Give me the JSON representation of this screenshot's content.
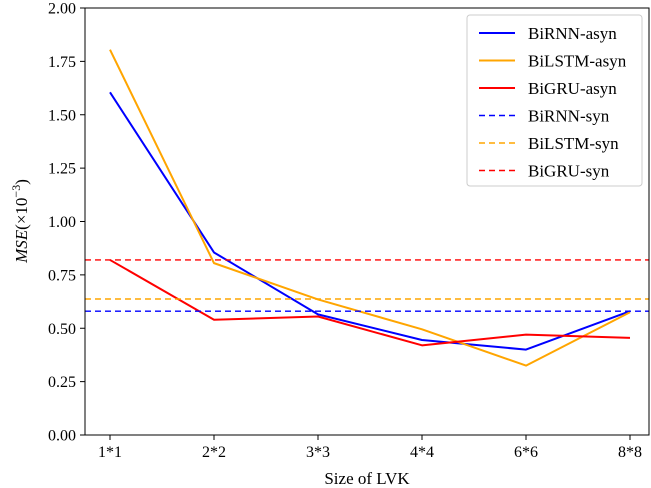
{
  "chart_data": {
    "type": "line",
    "title": "",
    "xlabel": "Size of LVK",
    "ylabel_main": "MSE",
    "ylabel_paren_open": "(×10",
    "ylabel_exp": "−3",
    "ylabel_paren_close": ")",
    "categories": [
      "1*1",
      "2*2",
      "3*3",
      "4*4",
      "6*6",
      "8*8"
    ],
    "ylim": [
      0,
      2.0
    ],
    "yticks": [
      "0.00",
      "0.25",
      "0.50",
      "0.75",
      "1.00",
      "1.25",
      "1.50",
      "1.75",
      "2.00"
    ],
    "grid": false,
    "legend_position": "top-right",
    "series": [
      {
        "name": "BiRNN-asyn",
        "color": "#0000ff",
        "style": "solid",
        "values": [
          1.605,
          0.855,
          0.565,
          0.445,
          0.4,
          0.58
        ]
      },
      {
        "name": "BiLSTM-asyn",
        "color": "#ffa500",
        "style": "solid",
        "values": [
          1.805,
          0.805,
          0.635,
          0.495,
          0.325,
          0.575
        ]
      },
      {
        "name": "BiGRU-asyn",
        "color": "#ff0000",
        "style": "solid",
        "values": [
          0.82,
          0.54,
          0.555,
          0.42,
          0.47,
          0.455
        ]
      },
      {
        "name": "BiRNN-syn",
        "color": "#0000ff",
        "style": "dashed",
        "values": [
          0.58,
          0.58,
          0.58,
          0.58,
          0.58,
          0.58
        ]
      },
      {
        "name": "BiLSTM-syn",
        "color": "#ffa500",
        "style": "dashed",
        "values": [
          0.637,
          0.637,
          0.637,
          0.637,
          0.637,
          0.637
        ]
      },
      {
        "name": "BiGRU-syn",
        "color": "#ff0000",
        "style": "dashed",
        "values": [
          0.82,
          0.82,
          0.82,
          0.82,
          0.82,
          0.82
        ]
      }
    ]
  }
}
